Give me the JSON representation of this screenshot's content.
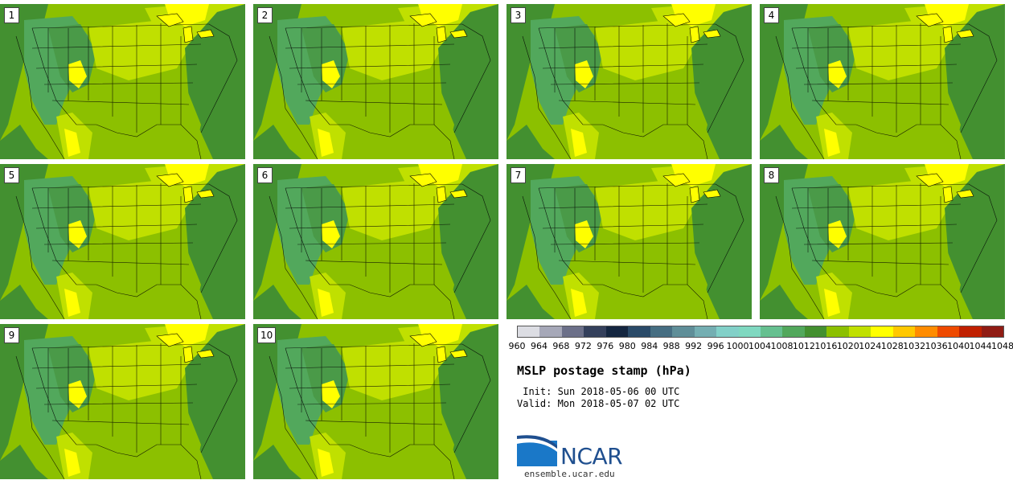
{
  "panels": [
    {
      "number": "1"
    },
    {
      "number": "2"
    },
    {
      "number": "3"
    },
    {
      "number": "4"
    },
    {
      "number": "5"
    },
    {
      "number": "6"
    },
    {
      "number": "7"
    },
    {
      "number": "8"
    },
    {
      "number": "9"
    },
    {
      "number": "10"
    }
  ],
  "colorbar": {
    "labels": [
      "960",
      "964",
      "968",
      "972",
      "976",
      "980",
      "984",
      "988",
      "992",
      "996",
      "1000",
      "1004",
      "1008",
      "1012",
      "1016",
      "1020",
      "1024",
      "1028",
      "1032",
      "1036",
      "1040",
      "1044",
      "1048"
    ],
    "colors": [
      "#dcdde3",
      "#a6a8b8",
      "#6c7089",
      "#34405c",
      "#142640",
      "#2a4a68",
      "#466e82",
      "#5f8e98",
      "#74aeb2",
      "#82d0c8",
      "#7fd8c0",
      "#66c090",
      "#52a85c",
      "#439030",
      "#8cc000",
      "#c0e000",
      "#ffff00",
      "#ffc800",
      "#ff8c00",
      "#ee4a00",
      "#c02000",
      "#901c14",
      "#6a1a10"
    ]
  },
  "product": {
    "title": "MSLP postage stamp (hPa)",
    "init": " Init: Sun 2018-05-06 00 UTC",
    "valid": "Valid: Mon 2018-05-07 02 UTC"
  },
  "branding": {
    "logo_text": "NCAR",
    "url": "ensemble.ucar.edu"
  }
}
